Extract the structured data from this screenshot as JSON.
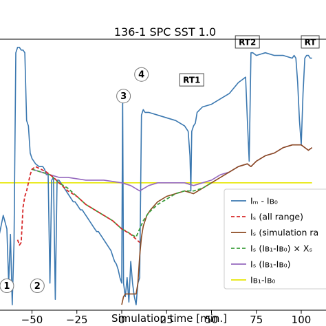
{
  "chart_data": {
    "type": "line",
    "title": "136-1 SPC SST 1.0",
    "xlabel": "Simulation time [min.]",
    "ylabel": "",
    "xlim": [
      -70,
      106
    ],
    "ylim": [
      0,
      1
    ],
    "grid": false,
    "xticks": [
      "−50",
      "−25",
      "0",
      "25",
      "50",
      "75",
      "100"
    ],
    "xtick_values": [
      -50,
      -25,
      0,
      25,
      50,
      75,
      100
    ],
    "legend": {
      "placement": "lower-right",
      "entries": [
        "Iₘ - Iʙ₀",
        "Iₛ (all range)",
        "Iₛ (simulation ra",
        "Iₛ (Iʙ₁-Iʙ₀) × Xₛ",
        "Iₛ (Iʙ₁-Iʙ₀)",
        "Iʙ₁-Iʙ₀"
      ]
    },
    "series": [
      {
        "name": "I_M - I_B0",
        "color": "#3b78b0",
        "style": "solid",
        "x": [
          -70,
          -66,
          -64,
          -63,
          -62,
          -61,
          -60,
          -59,
          -58,
          -57,
          -56,
          -55,
          -54,
          -53,
          -52,
          -51,
          -50,
          -48,
          -46,
          -44,
          -43,
          -42,
          -41,
          -40,
          -39,
          -38,
          -37,
          -36,
          -35,
          -34,
          -33,
          -32,
          -31,
          -30,
          -29,
          -28,
          -27,
          -26,
          -25,
          -24,
          -23,
          -22,
          -21,
          -20,
          -19,
          -18,
          -17,
          -16,
          -15,
          -14,
          -13,
          -12,
          -11,
          -10,
          -9,
          -8,
          -7,
          -6,
          -5,
          -4,
          -3,
          -2,
          -1,
          0,
          0.5,
          1,
          2,
          3,
          4,
          5,
          6,
          7,
          8,
          9,
          10,
          11,
          12,
          13,
          15,
          20,
          25,
          30,
          35,
          36,
          37,
          38,
          38.5,
          39,
          40,
          41,
          42,
          45,
          50,
          55,
          60,
          65,
          67,
          69,
          70,
          71,
          72,
          73,
          75,
          80,
          85,
          90,
          95,
          96,
          97,
          98,
          99,
          100,
          101,
          102,
          103,
          104,
          105,
          106
        ],
        "y": [
          0.22,
          0.35,
          0.3,
          0.1,
          0.28,
          0.02,
          0.25,
          0.95,
          0.97,
          0.97,
          0.96,
          0.96,
          0.95,
          0.7,
          0.68,
          0.58,
          0.56,
          0.54,
          0.53,
          0.53,
          0.52,
          0.5,
          0.5,
          0.1,
          0.48,
          0.49,
          0.04,
          0.48,
          0.48,
          0.47,
          0.46,
          0.45,
          0.44,
          0.43,
          0.42,
          0.41,
          0.4,
          0.4,
          0.39,
          0.38,
          0.37,
          0.37,
          0.36,
          0.35,
          0.34,
          0.33,
          0.32,
          0.31,
          0.3,
          0.29,
          0.29,
          0.28,
          0.27,
          0.26,
          0.25,
          0.24,
          0.23,
          0.22,
          0.2,
          0.18,
          0.17,
          0.15,
          0.12,
          0.1,
          0.8,
          0.1,
          0.05,
          0.12,
          0.03,
          0.18,
          0.1,
          0.05,
          0.02,
          0.1,
          0.12,
          0.72,
          0.74,
          0.73,
          0.73,
          0.72,
          0.71,
          0.7,
          0.68,
          0.67,
          0.66,
          0.57,
          0.44,
          0.66,
          0.68,
          0.69,
          0.73,
          0.75,
          0.76,
          0.78,
          0.8,
          0.84,
          0.85,
          0.86,
          0.7,
          0.55,
          0.95,
          0.95,
          0.94,
          0.95,
          0.94,
          0.94,
          0.93,
          0.94,
          0.93,
          0.84,
          0.7,
          0.61,
          0.8,
          0.93,
          0.94,
          0.94,
          0.93,
          0.93
        ]
      },
      {
        "name": "I_S (all range)",
        "color": "#d62728",
        "style": "dashed",
        "x": [
          -58,
          -57,
          -56,
          -55,
          -54,
          -53,
          -52,
          -51,
          -50,
          -48,
          -45,
          -42,
          -40,
          -38,
          -35,
          -30,
          -25,
          -20,
          -15,
          -10,
          -5,
          0,
          5,
          10
        ],
        "y": [
          0.26,
          0.24,
          0.25,
          0.38,
          0.42,
          0.44,
          0.47,
          0.5,
          0.52,
          0.53,
          0.52,
          0.51,
          0.5,
          0.49,
          0.47,
          0.44,
          0.42,
          0.39,
          0.37,
          0.35,
          0.33,
          0.3,
          0.28,
          0.25
        ]
      },
      {
        "name": "I_S (simulation range)",
        "color": "#8c4a21",
        "style": "solid",
        "x": [
          0,
          1,
          2,
          3,
          6,
          8,
          9,
          10,
          11,
          12,
          14,
          16,
          20,
          25,
          30,
          35,
          40,
          45,
          50,
          55,
          60,
          65,
          70,
          72,
          75,
          80,
          85,
          90,
          95,
          100,
          102,
          104,
          106
        ],
        "y": [
          0.02,
          0.05,
          0.06,
          0.06,
          0.06,
          0.06,
          0.1,
          0.2,
          0.27,
          0.31,
          0.35,
          0.37,
          0.4,
          0.42,
          0.43,
          0.44,
          0.43,
          0.45,
          0.47,
          0.49,
          0.51,
          0.53,
          0.54,
          0.53,
          0.55,
          0.57,
          0.58,
          0.6,
          0.61,
          0.61,
          0.6,
          0.59,
          0.6
        ]
      },
      {
        "name": "I_S (I_B1-I_B0) x X_S",
        "color": "#3d9e3d",
        "style": "dashed",
        "x": [
          -50,
          -45,
          -40,
          -35,
          -30,
          -25,
          -20,
          -15,
          -10,
          -5,
          0,
          3,
          5,
          8,
          10,
          12,
          15,
          20,
          25,
          30,
          35,
          40,
          45,
          50
        ],
        "y": [
          0.52,
          0.51,
          0.5,
          0.47,
          0.45,
          0.42,
          0.39,
          0.37,
          0.35,
          0.33,
          0.3,
          0.29,
          0.28,
          0.27,
          0.3,
          0.33,
          0.36,
          0.39,
          0.41,
          0.43,
          0.44,
          0.44,
          0.45,
          0.47
        ]
      },
      {
        "name": "I_S (I_B1-I_B0)",
        "color": "#9467bd",
        "style": "solid",
        "x": [
          -50,
          -45,
          -40,
          -35,
          -30,
          -20,
          -10,
          0,
          5,
          10,
          15,
          20,
          25,
          30,
          35,
          40,
          45,
          50,
          55,
          60,
          65,
          70,
          72,
          75,
          80,
          85,
          90,
          95,
          100,
          102,
          104,
          106
        ],
        "y": [
          0.52,
          0.51,
          0.5,
          0.49,
          0.49,
          0.48,
          0.48,
          0.47,
          0.46,
          0.44,
          0.46,
          0.47,
          0.47,
          0.47,
          0.47,
          0.46,
          0.47,
          0.48,
          0.5,
          0.51,
          0.53,
          0.54,
          0.53,
          0.55,
          0.57,
          0.58,
          0.6,
          0.61,
          0.61,
          0.6,
          0.59,
          0.6
        ]
      },
      {
        "name": "I_B1-I_B0",
        "color": "#e6e600",
        "style": "solid",
        "x": [
          -70,
          106
        ],
        "y": [
          0.47,
          0.47
        ]
      }
    ],
    "annotations": [
      {
        "text": "1",
        "shape": "circle",
        "x": -64,
        "y": 0.09
      },
      {
        "text": "2",
        "shape": "circle",
        "x": -47,
        "y": 0.09
      },
      {
        "text": "3",
        "shape": "circle",
        "x": 1,
        "y": 0.79
      },
      {
        "text": "4",
        "shape": "circle",
        "x": 11,
        "y": 0.87
      },
      {
        "text": "RT1",
        "shape": "box",
        "x": 39,
        "y": 0.85
      },
      {
        "text": "RT2",
        "shape": "box",
        "x": 70,
        "y": 0.99
      },
      {
        "text": "RT",
        "shape": "box",
        "x": 105,
        "y": 0.99
      }
    ]
  }
}
